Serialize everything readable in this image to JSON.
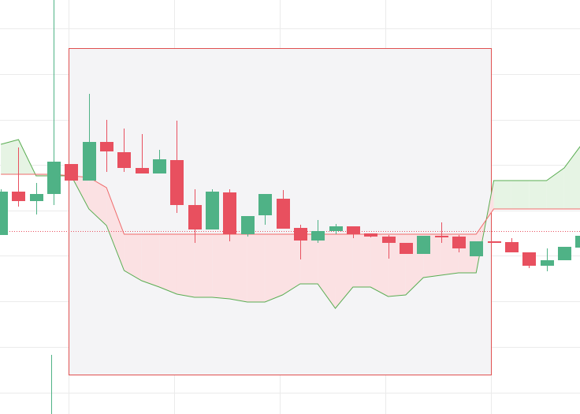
{
  "chart_data": {
    "type": "candlestick",
    "x": [
      0,
      1,
      2,
      3,
      4,
      5,
      6,
      7,
      8,
      9,
      10,
      11,
      12,
      13,
      14,
      15,
      16,
      17,
      18,
      19,
      20,
      21,
      22,
      23,
      24,
      25,
      26,
      27,
      28,
      29,
      30,
      31,
      32,
      33
    ],
    "open": [
      227,
      282,
      270,
      279,
      317,
      296,
      345,
      332,
      312,
      305,
      322,
      265,
      234,
      281,
      228,
      252,
      273,
      236,
      220,
      232,
      238,
      229,
      225,
      217,
      203,
      226,
      225,
      200,
      219,
      218,
      205,
      188,
      195,
      211
    ],
    "high": [
      285,
      338,
      293,
      525,
      317,
      406,
      373,
      362,
      355,
      335,
      372,
      285,
      285,
      285,
      251,
      279,
      284,
      240,
      246,
      241,
      238,
      229,
      227,
      217,
      226,
      243,
      227,
      219,
      219,
      223,
      205,
      210,
      212,
      226
    ],
    "low": [
      227,
      263,
      253,
      265,
      296,
      296,
      307,
      307,
      305,
      305,
      255,
      217,
      234,
      219,
      225,
      240,
      235,
      196,
      217,
      228,
      223,
      224,
      197,
      203,
      203,
      217,
      205,
      200,
      217,
      205,
      185,
      181,
      195,
      211
    ],
    "close": [
      282,
      270,
      279,
      320,
      296,
      345,
      333,
      312,
      305,
      323,
      265,
      234,
      282,
      228,
      251,
      279,
      235,
      220,
      232,
      238,
      228,
      225,
      217,
      203,
      226,
      224,
      210,
      219,
      217,
      205,
      188,
      195,
      212,
      226
    ],
    "up_color": "#4fb286",
    "down_color": "#e8505f",
    "lines": [
      {
        "color": "#5aad52",
        "values": [
          342,
          348,
          302,
          302,
          302,
          260,
          239,
          182,
          169,
          161,
          152,
          148,
          148,
          146,
          142,
          142,
          151,
          165,
          165,
          134,
          161,
          161,
          149,
          151,
          173,
          176,
          179,
          179,
          296,
          296,
          296,
          296,
          312,
          342
        ]
      },
      {
        "color": "#ef6a6a",
        "values": [
          304,
          304,
          304,
          304,
          302,
          300,
          287,
          228,
          228,
          228,
          228,
          228,
          228,
          228,
          228,
          228,
          228,
          228,
          228,
          228,
          228,
          228,
          228,
          228,
          228,
          228,
          228,
          228,
          260,
          260,
          260,
          260,
          260,
          260
        ]
      }
    ],
    "fill_up_color": "#e6f4e4",
    "fill_down_color": "#fbe1e3",
    "price_line": 232,
    "price_line_color": "#e8505f",
    "xlim": [
      -0.05,
      32.9
    ],
    "ylim": [
      0,
      525
    ],
    "xticks": [
      3.85,
      9.85,
      15.85,
      21.85,
      27.85
    ],
    "yticks": [
      489,
      431,
      373,
      316,
      258,
      201,
      143,
      85,
      27
    ],
    "grid": true
  }
}
